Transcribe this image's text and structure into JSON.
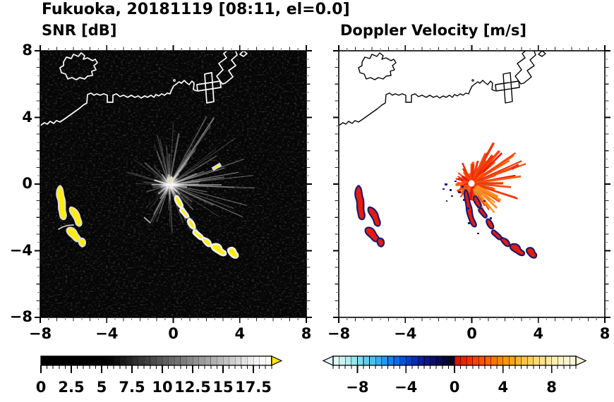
{
  "title": "Fukuoka, 20181119 [08:11, el=0.0]",
  "panels": {
    "snr": {
      "subtitle": "SNR [dB]"
    },
    "velocity": {
      "subtitle": "Doppler Velocity [m/s]"
    }
  },
  "axes": {
    "range": [
      -8,
      8
    ],
    "major_step": 4,
    "minor_step": 0.5,
    "x_tick_values": [
      -8,
      -4,
      0,
      4,
      8
    ],
    "x_tick_labels": [
      "−8",
      "−4",
      "0",
      "4",
      "8"
    ],
    "y_tick_values": [
      8,
      4,
      0,
      -4,
      -8
    ],
    "y_tick_labels": [
      "8",
      "4",
      "0",
      "−4",
      "−8"
    ]
  },
  "colorbars": {
    "snr": {
      "min": 0,
      "max": 19,
      "cell_step": 0.5,
      "ramp_start": 5.5,
      "ramp_end": 18,
      "label_values": [
        0,
        2.5,
        5,
        7.5,
        10,
        12.5,
        15,
        17.5
      ],
      "labels": [
        "0",
        "2.5",
        "5",
        "7.5",
        "10",
        "12.5",
        "15",
        "17.5"
      ],
      "overflow_color": "#ffe800"
    },
    "velocity": {
      "min": -10,
      "max": 10,
      "cell_step": 0.5,
      "label_values": [
        -8,
        -4,
        0,
        4,
        8
      ],
      "labels": [
        "−8",
        "−4",
        "0",
        "4",
        "8"
      ],
      "neg_cells": [
        "#dff8f6",
        "#c9f3f2",
        "#b0edf0",
        "#95e5ef",
        "#79dcf0",
        "#5fd0f2",
        "#47c1f4",
        "#32aff6",
        "#219af7",
        "#1482f5",
        "#0b69ee",
        "#0751e2",
        "#063dd1",
        "#082cba",
        "#0a1fa0",
        "#0b1585",
        "#0a0e6a",
        "#080a50",
        "#050638",
        "#030424"
      ],
      "pos_cells": [
        "#e60f00",
        "#ee2000",
        "#f43100",
        "#f94200",
        "#fc5300",
        "#fe6400",
        "#ff7500",
        "#ff8600",
        "#ff9700",
        "#ffa70e",
        "#ffb626",
        "#ffc43e",
        "#ffd057",
        "#ffda70",
        "#ffe288",
        "#fee99e",
        "#fcefb2",
        "#fbf2c2",
        "#faf4cd",
        "#faf5d6"
      ]
    }
  },
  "chart_data": {
    "type": "heatmap",
    "suptitle": "Fukuoka, 20181119 [08:11, el=0.0]",
    "panels": [
      {
        "title": "SNR [dB]",
        "xlim": [
          -8,
          8
        ],
        "ylim": [
          -8,
          8
        ],
        "x_ticks": [
          -8,
          -4,
          0,
          4,
          8
        ],
        "y_ticks": [
          -8,
          -4,
          0,
          4,
          8
        ],
        "background": "black (low SNR noise speckle)",
        "colorbar": {
          "range": [
            0,
            19
          ],
          "tick_labels": [
            0,
            2.5,
            5,
            7.5,
            10,
            12.5,
            15,
            17.5
          ],
          "scale": "grayscale black to white, overflow arrow yellow"
        },
        "features": [
          "radial bright clutter spokes centered at radar origin (0, -0.2)",
          "yellow (saturated) echo chain from (0.2, -0.7) down to (3.6, -4.3)",
          "yellow echo cluster between (-7.0, -0.5) and (-5.2, -3.9)",
          "small yellow echo near (2.3, 1.2) and at origin",
          "white coastline across upper third with island near (-6, 5.6) and harbor piers near (2 to 4.5, 4.5 to 6.5)"
        ]
      },
      {
        "title": "Doppler Velocity [m/s]",
        "xlim": [
          -8,
          8
        ],
        "ylim": [
          -8,
          8
        ],
        "background": "white (no data)",
        "colorbar": {
          "range": [
            -10,
            10
          ],
          "tick_labels": [
            -8,
            -4,
            0,
            4,
            8
          ],
          "scale": "pale cyan to dark navy for negative, red through orange to cream for positive"
        },
        "features": [
          "fan of positive (red-orange, ~1-4 m/s) velocities east and southeast of origin with white hole at radar site (0.3, 0)",
          "echo chain from (0, -0.5) to (3.6, -4.3) mostly red with navy (negative) fringes",
          "echo cluster between (-7.0, -0.5) and (-5.2, -3.9) red with navy cores",
          "same coastline drawn in black on white"
        ]
      }
    ]
  }
}
